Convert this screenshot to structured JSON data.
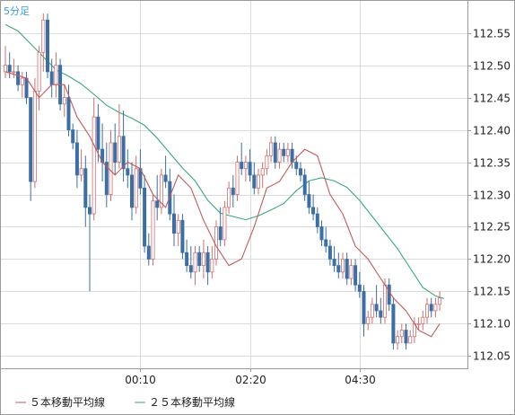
{
  "chart_data": {
    "type": "candlestick",
    "timeframe_label": "5分足",
    "y_ticks": [
      "112.55",
      "112.50",
      "112.45",
      "112.40",
      "112.35",
      "112.30",
      "112.25",
      "112.20",
      "112.15",
      "112.10",
      "112.05"
    ],
    "y_tick_values": [
      112.55,
      112.5,
      112.45,
      112.4,
      112.35,
      112.3,
      112.25,
      112.2,
      112.15,
      112.1,
      112.05
    ],
    "ylim": [
      112.031,
      112.601
    ],
    "x_ticks": [
      {
        "label": "00:10",
        "index": 32
      },
      {
        "label": "02:20",
        "index": 58
      },
      {
        "label": "04:30",
        "index": 84
      }
    ],
    "legend": [
      {
        "name": "５本移動平均線",
        "color": "#c45a5a"
      },
      {
        "name": "２５本移動平均線",
        "color": "#3aaa77"
      }
    ],
    "colors": {
      "up": "#ffffff",
      "up_outline": "#d07070",
      "down": "#3b6fa5"
    },
    "ma5": [
      [
        0,
        112.49
      ],
      [
        5,
        112.48
      ],
      [
        8,
        112.45
      ],
      [
        11,
        112.47
      ],
      [
        14,
        112.47
      ],
      [
        17,
        112.42
      ],
      [
        20,
        112.39
      ],
      [
        23,
        112.35
      ],
      [
        26,
        112.33
      ],
      [
        29,
        112.35
      ],
      [
        32,
        112.34
      ],
      [
        35,
        112.3
      ],
      [
        38,
        112.28
      ],
      [
        41,
        112.33
      ],
      [
        44,
        112.31
      ],
      [
        47,
        112.26
      ],
      [
        50,
        112.22
      ],
      [
        53,
        112.19
      ],
      [
        56,
        112.2
      ],
      [
        59,
        112.25
      ],
      [
        62,
        112.31
      ],
      [
        65,
        112.32
      ],
      [
        68,
        112.35
      ],
      [
        71,
        112.37
      ],
      [
        74,
        112.36
      ],
      [
        77,
        112.3
      ],
      [
        80,
        112.27
      ],
      [
        83,
        112.22
      ],
      [
        86,
        112.2
      ],
      [
        89,
        112.17
      ],
      [
        92,
        112.14
      ],
      [
        95,
        112.12
      ],
      [
        98,
        112.09
      ],
      [
        101,
        112.08
      ],
      [
        103,
        112.1
      ]
    ],
    "ma25": [
      [
        0,
        112.563
      ],
      [
        3,
        112.553
      ],
      [
        6,
        112.533
      ],
      [
        9,
        112.513
      ],
      [
        12,
        112.493
      ],
      [
        15,
        112.483
      ],
      [
        18,
        112.471
      ],
      [
        21,
        112.455
      ],
      [
        24,
        112.438
      ],
      [
        27,
        112.427
      ],
      [
        30,
        112.418
      ],
      [
        33,
        112.407
      ],
      [
        36,
        112.387
      ],
      [
        39,
        112.364
      ],
      [
        42,
        112.341
      ],
      [
        45,
        112.321
      ],
      [
        48,
        112.291
      ],
      [
        51,
        112.271
      ],
      [
        54,
        112.266
      ],
      [
        57,
        112.261
      ],
      [
        60,
        112.267
      ],
      [
        63,
        112.276
      ],
      [
        66,
        112.286
      ],
      [
        69,
        112.306
      ],
      [
        72,
        112.321
      ],
      [
        75,
        112.326
      ],
      [
        78,
        112.321
      ],
      [
        81,
        112.311
      ],
      [
        84,
        112.291
      ],
      [
        87,
        112.266
      ],
      [
        90,
        112.241
      ],
      [
        93,
        112.216
      ],
      [
        96,
        112.186
      ],
      [
        99,
        112.156
      ],
      [
        102,
        112.143
      ],
      [
        104,
        112.139
      ]
    ],
    "candles": [
      [
        112.49,
        112.53,
        112.48,
        112.5
      ],
      [
        112.5,
        112.52,
        112.48,
        112.49
      ],
      [
        112.49,
        112.51,
        112.48,
        112.49
      ],
      [
        112.49,
        112.5,
        112.46,
        112.47
      ],
      [
        112.47,
        112.49,
        112.45,
        112.48
      ],
      [
        112.48,
        112.49,
        112.44,
        112.45
      ],
      [
        112.45,
        112.45,
        112.29,
        112.32
      ],
      [
        112.32,
        112.48,
        112.31,
        112.46
      ],
      [
        112.46,
        112.53,
        112.43,
        112.52
      ],
      [
        112.52,
        112.58,
        112.49,
        112.57
      ],
      [
        112.57,
        112.58,
        112.48,
        112.49
      ],
      [
        112.49,
        112.51,
        112.45,
        112.47
      ],
      [
        112.47,
        112.52,
        112.45,
        112.5
      ],
      [
        112.5,
        112.51,
        112.43,
        112.44
      ],
      [
        112.44,
        112.47,
        112.42,
        112.45
      ],
      [
        112.45,
        112.47,
        112.39,
        112.4
      ],
      [
        112.4,
        112.41,
        112.37,
        112.38
      ],
      [
        112.38,
        112.4,
        112.31,
        112.33
      ],
      [
        112.33,
        112.37,
        112.32,
        112.34
      ],
      [
        112.34,
        112.36,
        112.25,
        112.28
      ],
      [
        112.28,
        112.3,
        112.15,
        112.27
      ],
      [
        112.27,
        112.45,
        112.26,
        112.42
      ],
      [
        112.42,
        112.44,
        112.35,
        112.37
      ],
      [
        112.37,
        112.41,
        112.32,
        112.35
      ],
      [
        112.35,
        112.38,
        112.28,
        112.3
      ],
      [
        112.3,
        112.4,
        112.29,
        112.38
      ],
      [
        112.38,
        112.41,
        112.33,
        112.35
      ],
      [
        112.35,
        112.44,
        112.34,
        112.39
      ],
      [
        112.39,
        112.43,
        112.32,
        112.34
      ],
      [
        112.34,
        112.37,
        112.31,
        112.33
      ],
      [
        112.33,
        112.35,
        112.26,
        112.28
      ],
      [
        112.28,
        112.36,
        112.27,
        112.34
      ],
      [
        112.34,
        112.37,
        112.3,
        112.31
      ],
      [
        112.31,
        112.33,
        112.21,
        112.22
      ],
      [
        112.22,
        112.24,
        112.19,
        112.2
      ],
      [
        112.2,
        112.3,
        112.19,
        112.29
      ],
      [
        112.29,
        112.33,
        112.26,
        112.28
      ],
      [
        112.28,
        112.34,
        112.27,
        112.33
      ],
      [
        112.33,
        112.36,
        112.31,
        112.32
      ],
      [
        112.32,
        112.34,
        112.26,
        112.27
      ],
      [
        112.27,
        112.3,
        112.22,
        112.24
      ],
      [
        112.24,
        112.27,
        112.22,
        112.26
      ],
      [
        112.26,
        112.27,
        112.2,
        112.21
      ],
      [
        112.21,
        112.23,
        112.18,
        112.19
      ],
      [
        112.19,
        112.22,
        112.17,
        112.18
      ],
      [
        112.18,
        112.22,
        112.16,
        112.21
      ],
      [
        112.21,
        112.22,
        112.18,
        112.19
      ],
      [
        112.19,
        112.23,
        112.17,
        112.21
      ],
      [
        112.21,
        112.22,
        112.16,
        112.18
      ],
      [
        112.18,
        112.22,
        112.17,
        112.2
      ],
      [
        112.2,
        112.26,
        112.19,
        112.25
      ],
      [
        112.25,
        112.28,
        112.22,
        112.23
      ],
      [
        112.23,
        112.29,
        112.22,
        112.28
      ],
      [
        112.28,
        112.32,
        112.27,
        112.31
      ],
      [
        112.31,
        112.33,
        112.28,
        112.3
      ],
      [
        112.3,
        112.36,
        112.29,
        112.35
      ],
      [
        112.35,
        112.38,
        112.33,
        112.34
      ],
      [
        112.34,
        112.36,
        112.32,
        112.35
      ],
      [
        112.35,
        112.37,
        112.32,
        112.33
      ],
      [
        112.33,
        112.35,
        112.3,
        112.31
      ],
      [
        112.31,
        112.34,
        112.3,
        112.33
      ],
      [
        112.33,
        112.35,
        112.31,
        112.34
      ],
      [
        112.34,
        112.37,
        112.33,
        112.36
      ],
      [
        112.36,
        112.39,
        112.35,
        112.38
      ],
      [
        112.38,
        112.39,
        112.34,
        112.35
      ],
      [
        112.35,
        112.38,
        112.34,
        112.37
      ],
      [
        112.37,
        112.38,
        112.35,
        112.36
      ],
      [
        112.36,
        112.38,
        112.35,
        112.37
      ],
      [
        112.37,
        112.38,
        112.34,
        112.35
      ],
      [
        112.35,
        112.36,
        112.33,
        112.34
      ],
      [
        112.34,
        112.35,
        112.32,
        112.33
      ],
      [
        112.33,
        112.34,
        112.29,
        112.3
      ],
      [
        112.3,
        112.32,
        112.27,
        112.28
      ],
      [
        112.28,
        112.3,
        112.26,
        112.27
      ],
      [
        112.27,
        112.28,
        112.24,
        112.25
      ],
      [
        112.25,
        112.26,
        112.22,
        112.23
      ],
      [
        112.23,
        112.25,
        112.21,
        112.22
      ],
      [
        112.22,
        112.23,
        112.19,
        112.2
      ],
      [
        112.2,
        112.22,
        112.18,
        112.19
      ],
      [
        112.19,
        112.21,
        112.17,
        112.18
      ],
      [
        112.18,
        112.21,
        112.17,
        112.2
      ],
      [
        112.2,
        112.21,
        112.16,
        112.17
      ],
      [
        112.17,
        112.2,
        112.16,
        112.19
      ],
      [
        112.19,
        112.2,
        112.15,
        112.16
      ],
      [
        112.16,
        112.18,
        112.14,
        112.15
      ],
      [
        112.15,
        112.16,
        112.08,
        112.1
      ],
      [
        112.1,
        112.12,
        112.09,
        112.11
      ],
      [
        112.11,
        112.14,
        112.1,
        112.13
      ],
      [
        112.13,
        112.16,
        112.11,
        112.12
      ],
      [
        112.12,
        112.14,
        112.1,
        112.11
      ],
      [
        112.11,
        112.17,
        112.1,
        112.16
      ],
      [
        112.16,
        112.17,
        112.12,
        112.13
      ],
      [
        112.13,
        112.14,
        112.06,
        112.07
      ],
      [
        112.07,
        112.09,
        112.06,
        112.08
      ],
      [
        112.08,
        112.1,
        112.07,
        112.09
      ],
      [
        112.09,
        112.1,
        112.06,
        112.07
      ],
      [
        112.07,
        112.09,
        112.07,
        112.08
      ],
      [
        112.08,
        112.11,
        112.07,
        112.1
      ],
      [
        112.1,
        112.11,
        112.09,
        112.1
      ],
      [
        112.1,
        112.12,
        112.09,
        112.11
      ],
      [
        112.11,
        112.14,
        112.1,
        112.13
      ],
      [
        112.13,
        112.14,
        112.11,
        112.12
      ],
      [
        112.12,
        112.14,
        112.11,
        112.13
      ],
      [
        112.13,
        112.15,
        112.12,
        112.14
      ]
    ]
  }
}
